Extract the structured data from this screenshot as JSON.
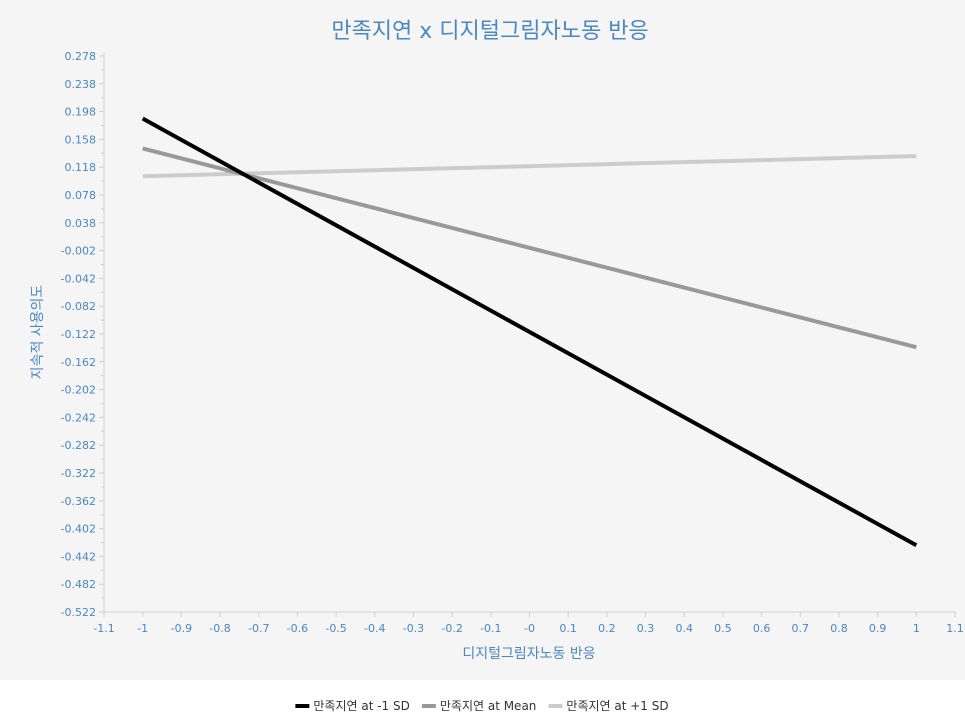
{
  "chart_data": {
    "type": "line",
    "title": "만족지연 x 디지털그림자노동 반응",
    "xlabel": "디지털그림자노동 반응",
    "ylabel": "지속적 사용의도",
    "xlim": [
      -1.1,
      1.1
    ],
    "ylim": [
      -0.522,
      0.278
    ],
    "x_ticks": [
      "-1.1",
      "-1",
      "-0.9",
      "-0.8",
      "-0.7",
      "-0.6",
      "-0.5",
      "-0.4",
      "-0.3",
      "-0.2",
      "-0.1",
      "-0",
      "0.1",
      "0.2",
      "0.3",
      "0.4",
      "0.5",
      "0.6",
      "0.7",
      "0.8",
      "0.9",
      "1",
      "1.1"
    ],
    "y_ticks": [
      "0.278",
      "0.238",
      "0.198",
      "0.158",
      "0.118",
      "0.078",
      "0.038",
      "-0.002",
      "-0.042",
      "-0.082",
      "-0.122",
      "-0.162",
      "-0.202",
      "-0.242",
      "-0.282",
      "-0.322",
      "-0.362",
      "-0.402",
      "-0.442",
      "-0.482",
      "-0.522"
    ],
    "grid": false,
    "legend_position": "bottom",
    "series": [
      {
        "name": "만족지연 at -1 SD",
        "color": "#000000",
        "x": [
          -1,
          1
        ],
        "y": [
          0.188,
          -0.426
        ]
      },
      {
        "name": "만족지연 at Mean",
        "color": "#999999",
        "x": [
          -1,
          1
        ],
        "y": [
          0.145,
          -0.141
        ]
      },
      {
        "name": "만족지연 at +1 SD",
        "color": "#cccccc",
        "x": [
          -1,
          1
        ],
        "y": [
          0.105,
          0.134
        ]
      }
    ],
    "colors": {
      "title": "#4a87c3",
      "axis_text": "#4a87c3",
      "background": "#f5f5f5"
    }
  }
}
